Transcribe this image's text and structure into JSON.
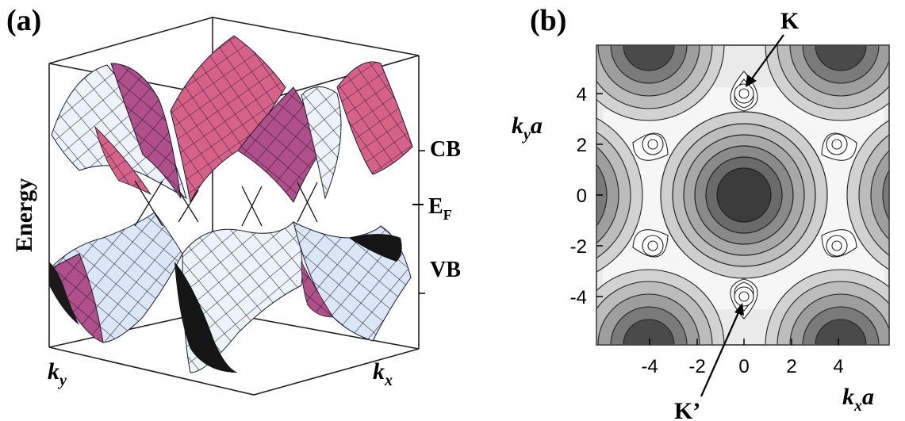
{
  "panels": {
    "a": {
      "label": "(a)",
      "y_axis": "Energy",
      "band_labels": {
        "cb": "CB",
        "ef_main": "E",
        "ef_sub": "F",
        "vb": "VB"
      },
      "axes": {
        "ky": "k",
        "ky_sub": "y",
        "kx": "k",
        "kx_sub": "x"
      }
    },
    "b": {
      "label": "(b)",
      "y_axis_main": "k",
      "y_axis_sub": "y",
      "y_axis_tail": "a",
      "x_axis_main": "k",
      "x_axis_sub": "x",
      "x_axis_tail": "a",
      "x_ticks": [
        "-4",
        "-2",
        "0",
        "2",
        "4"
      ],
      "y_ticks": [
        "4",
        "2",
        "0",
        "-2",
        "-4"
      ],
      "annotations": {
        "k": "K",
        "k_prime": "K’"
      }
    }
  },
  "colors": {
    "cb_surface": "#b0508a",
    "cb_highlight": "#e06a8e",
    "vb_surface": "#d8e6f6",
    "mesh_line": "#1a1a2e",
    "contour_dark": "#222222",
    "contour_light": "#f2f2f2"
  }
}
